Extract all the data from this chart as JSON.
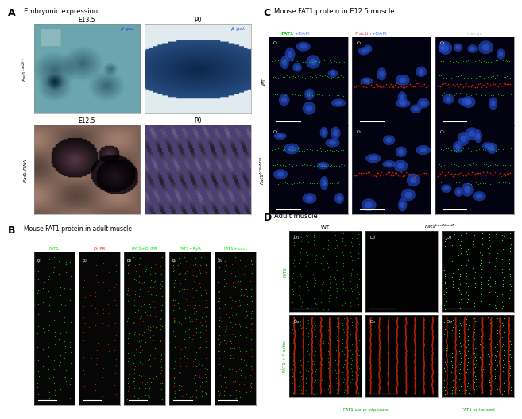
{
  "panel_A_label": "A",
  "panel_A_title": "Embryonic expression",
  "panel_A_row1_col1_title": "E13.5",
  "panel_A_row1_col2_title": "P0",
  "panel_A_row1_col1_betagal": "β-gal.",
  "panel_A_row1_col2_betagal": "β-gal.",
  "panel_A_row2_col1_title": "E12.5",
  "panel_A_row2_col2_title": "P0",
  "panel_B_label": "B",
  "panel_B_title": "Mouse FAT1 protein in adult muscle",
  "panel_C_label": "C",
  "panel_C_title": "Mouse FAT1 protein in E12.5 muscle",
  "panel_D_label": "D",
  "panel_D_title": "Adult muscle",
  "panel_D_bottom_label1": "FAT1 same exposure",
  "panel_D_bottom_label2": "FAT1 enhanced",
  "bg_color": "#ffffff"
}
